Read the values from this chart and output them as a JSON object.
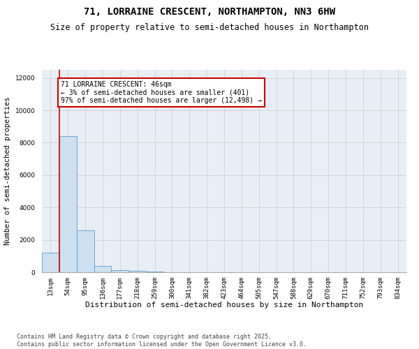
{
  "title": "71, LORRAINE CRESCENT, NORTHAMPTON, NN3 6HW",
  "subtitle": "Size of property relative to semi-detached houses in Northampton",
  "xlabel": "Distribution of semi-detached houses by size in Northampton",
  "ylabel": "Number of semi-detached properties",
  "categories": [
    "13sqm",
    "54sqm",
    "95sqm",
    "136sqm",
    "177sqm",
    "218sqm",
    "259sqm",
    "300sqm",
    "341sqm",
    "382sqm",
    "423sqm",
    "464sqm",
    "505sqm",
    "547sqm",
    "588sqm",
    "629sqm",
    "670sqm",
    "711sqm",
    "752sqm",
    "793sqm",
    "834sqm"
  ],
  "values": [
    1200,
    8400,
    2600,
    380,
    130,
    80,
    50,
    0,
    0,
    0,
    0,
    0,
    0,
    0,
    0,
    0,
    0,
    0,
    0,
    0,
    0
  ],
  "bar_color": "#cce0f0",
  "bar_edge_color": "#5b9bd5",
  "grid_color": "#d0d0d0",
  "bg_color": "#e8eef5",
  "annotation_text": "71 LORRAINE CRESCENT: 46sqm\n← 3% of semi-detached houses are smaller (401)\n97% of semi-detached houses are larger (12,498) →",
  "annotation_box_color": "#ffffff",
  "annotation_box_edge_color": "#cc0000",
  "marker_line_color": "#cc0000",
  "ylim": [
    0,
    12500
  ],
  "yticks": [
    0,
    2000,
    4000,
    6000,
    8000,
    10000,
    12000
  ],
  "footer": "Contains HM Land Registry data © Crown copyright and database right 2025.\nContains public sector information licensed under the Open Government Licence v3.0.",
  "title_fontsize": 10,
  "subtitle_fontsize": 8.5,
  "xlabel_fontsize": 8,
  "ylabel_fontsize": 7.5,
  "tick_fontsize": 6.5,
  "annotation_fontsize": 7,
  "footer_fontsize": 6
}
